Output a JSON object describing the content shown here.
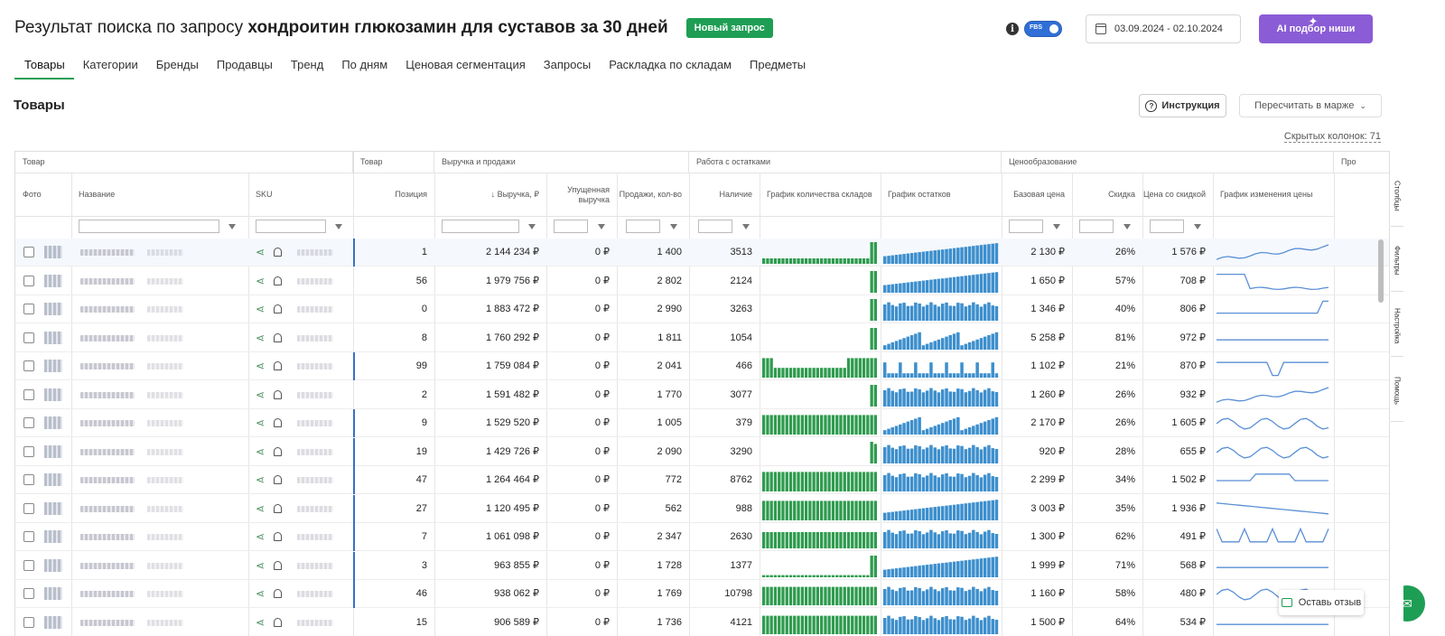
{
  "header": {
    "title_prefix": "Результат поиска по запросу",
    "query": "хондроитин глюкозамин для суставов за 30 дней",
    "new_request_label": "Новый запрос",
    "fbs_label": "FBS",
    "date_range": "03.09.2024 - 02.10.2024",
    "ai_button_label": "AI подбор ниши",
    "info_glyph": "i"
  },
  "tabs": [
    "Товары",
    "Категории",
    "Бренды",
    "Продавцы",
    "Тренд",
    "По дням",
    "Ценовая сегментация",
    "Запросы",
    "Раскладка по складам",
    "Предметы"
  ],
  "section": {
    "title": "Товары",
    "instruction_label": "Инструкция",
    "recalc_label": "Пересчитать в марже",
    "hidden_columns_label": "Скрытых колонок: 71"
  },
  "groups": {
    "product": "Товар",
    "product2": "Товар",
    "revenue": "Выручка и продажи",
    "stock": "Работа с остатками",
    "pricing": "Ценообразование",
    "more": "Про"
  },
  "columns": {
    "photo": "Фото",
    "name": "Название",
    "sku": "SKU",
    "position": "Позиция",
    "revenue": "↓ Выручка, ₽",
    "lost_revenue": "Упущенная выручка",
    "sales": "Продажи, кол-во",
    "stock": "Наличие",
    "warehouses_chart": "График количества складов",
    "stock_chart": "График остатков",
    "base_price": "Базовая цена",
    "discount": "Скидка",
    "price_discounted": "Цена со скидкой",
    "price_chart": "График изменения цены"
  },
  "rows": [
    {
      "position": "1",
      "revenue": "2 144 234 ₽",
      "lost": "0 ₽",
      "sales": "1 400",
      "stock": "3513",
      "base": "2 130 ₽",
      "discount": "26%",
      "price": "1 576 ₽"
    },
    {
      "position": "56",
      "revenue": "1 979 756 ₽",
      "lost": "0 ₽",
      "sales": "2 802",
      "stock": "2124",
      "base": "1 650 ₽",
      "discount": "57%",
      "price": "708 ₽"
    },
    {
      "position": "0",
      "revenue": "1 883 472 ₽",
      "lost": "0 ₽",
      "sales": "2 990",
      "stock": "3263",
      "base": "1 346 ₽",
      "discount": "40%",
      "price": "806 ₽"
    },
    {
      "position": "8",
      "revenue": "1 760 292 ₽",
      "lost": "0 ₽",
      "sales": "1 811",
      "stock": "1054",
      "base": "5 258 ₽",
      "discount": "81%",
      "price": "972 ₽"
    },
    {
      "position": "99",
      "revenue": "1 759 084 ₽",
      "lost": "0 ₽",
      "sales": "2 041",
      "stock": "466",
      "base": "1 102 ₽",
      "discount": "21%",
      "price": "870 ₽"
    },
    {
      "position": "2",
      "revenue": "1 591 482 ₽",
      "lost": "0 ₽",
      "sales": "1 770",
      "stock": "3077",
      "base": "1 260 ₽",
      "discount": "26%",
      "price": "932 ₽"
    },
    {
      "position": "9",
      "revenue": "1 529 520 ₽",
      "lost": "0 ₽",
      "sales": "1 005",
      "stock": "379",
      "base": "2 170 ₽",
      "discount": "26%",
      "price": "1 605 ₽"
    },
    {
      "position": "19",
      "revenue": "1 429 726 ₽",
      "lost": "0 ₽",
      "sales": "2 090",
      "stock": "3290",
      "base": "920 ₽",
      "discount": "28%",
      "price": "655 ₽"
    },
    {
      "position": "47",
      "revenue": "1 264 464 ₽",
      "lost": "0 ₽",
      "sales": "772",
      "stock": "8762",
      "base": "2 299 ₽",
      "discount": "34%",
      "price": "1 502 ₽"
    },
    {
      "position": "27",
      "revenue": "1 120 495 ₽",
      "lost": "0 ₽",
      "sales": "562",
      "stock": "988",
      "base": "3 003 ₽",
      "discount": "35%",
      "price": "1 936 ₽"
    },
    {
      "position": "7",
      "revenue": "1 061 098 ₽",
      "lost": "0 ₽",
      "sales": "2 347",
      "stock": "2630",
      "base": "1 300 ₽",
      "discount": "62%",
      "price": "491 ₽"
    },
    {
      "position": "3",
      "revenue": "963 855 ₽",
      "lost": "0 ₽",
      "sales": "1 728",
      "stock": "1377",
      "base": "1 999 ₽",
      "discount": "71%",
      "price": "568 ₽"
    },
    {
      "position": "46",
      "revenue": "938 062 ₽",
      "lost": "0 ₽",
      "sales": "1 769",
      "stock": "10798",
      "base": "1 160 ₽",
      "discount": "58%",
      "price": "480 ₽"
    },
    {
      "position": "15",
      "revenue": "906 589 ₽",
      "lost": "0 ₽",
      "sales": "1 736",
      "stock": "4121",
      "base": "1 500 ₽",
      "discount": "64%",
      "price": "534 ₽"
    }
  ],
  "charts": {
    "warehouse_pattern": [
      {
        "level": 0.25,
        "tail": 1.0
      },
      {
        "level": 0.0,
        "tail": 1.0
      },
      {
        "level": 0.0,
        "tail": 1.0
      },
      {
        "level": 0.0,
        "tail": 1.0
      },
      {
        "level": 0.45,
        "tail": 0.9
      },
      {
        "level": 0.0,
        "tail": 1.0
      },
      {
        "level": 0.9,
        "tail": 0.9
      },
      {
        "level": 0.0,
        "tail": 1.0
      },
      {
        "level": 0.9,
        "tail": 0.9
      },
      {
        "level": 0.9,
        "tail": 0.9
      },
      {
        "level": 0.75,
        "tail": 0.75
      },
      {
        "level": 0.1,
        "tail": 1.0
      },
      {
        "level": 0.85,
        "tail": 0.85
      },
      {
        "level": 0.85,
        "tail": 0.85
      }
    ],
    "stock_shape": [
      "ramp",
      "ramp",
      "flat",
      "saw",
      "sparse",
      "flat",
      "saw",
      "flat",
      "flat",
      "ramp",
      "flat",
      "ramp",
      "flat",
      "flat"
    ],
    "price_shape": [
      "up",
      "drop",
      "flat-jump",
      "flat",
      "dip",
      "up",
      "wave",
      "wave",
      "step",
      "down",
      "spiky",
      "flat",
      "wave",
      "flat"
    ]
  },
  "side_tabs": [
    "Столбцы",
    "Фильтры",
    "Настройка",
    "Помощь"
  ],
  "feedback_label": "Оставь отзыв",
  "colors": {
    "green": "#1e9e54",
    "bar_green": "#2e9b4e",
    "bar_blue": "#3d8fcd",
    "line_blue": "#5b8fd6",
    "purple": "#8a5cd6"
  }
}
